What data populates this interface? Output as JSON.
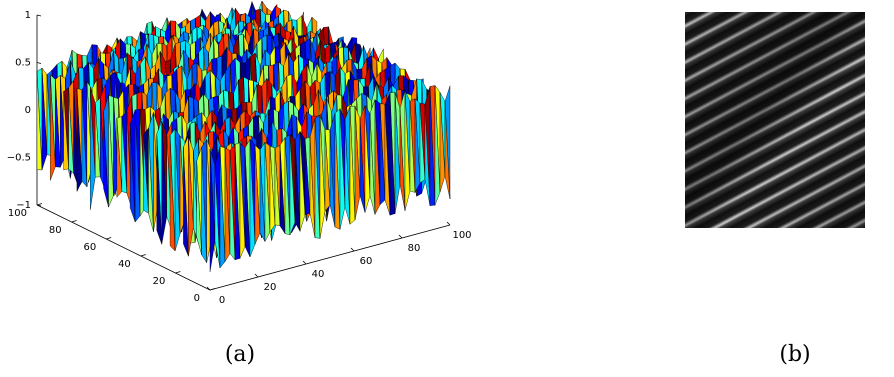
{
  "chart_data": [
    {
      "type": "surface",
      "zlim": [
        -1,
        1
      ],
      "zticks": [
        {
          "value": -1,
          "label": "−1"
        },
        {
          "value": -0.5,
          "label": "−0.5"
        },
        0,
        0.5,
        1
      ],
      "xlim": [
        0,
        100
      ],
      "xticks": [
        0,
        20,
        40,
        60,
        80,
        100
      ],
      "ylim": [
        0,
        100
      ],
      "yticks": [
        0,
        20,
        40,
        60,
        80,
        100
      ],
      "caption": "(a)"
    },
    {
      "type": "image",
      "caption": "(b)"
    }
  ]
}
